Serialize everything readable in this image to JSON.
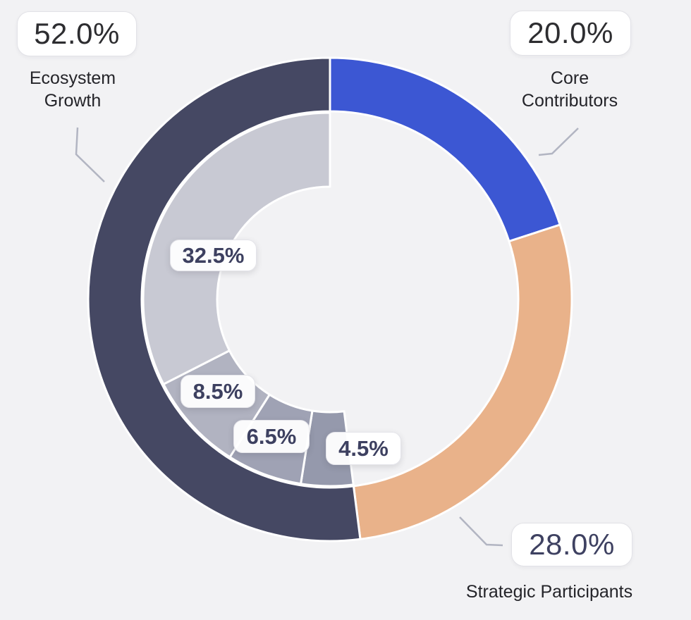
{
  "background_color": "#f2f2f4",
  "segment_stroke_color": "#ffffff",
  "leader_line_color": "#b2b5c2",
  "chart_data": {
    "type": "donut",
    "unit": "%",
    "legend_position": "callouts",
    "rings": [
      {
        "name": "outer",
        "start_angle_deg": 0,
        "segments": [
          {
            "label": "Core Contributors",
            "value": 20.0,
            "color": "#3c57d3"
          },
          {
            "label": "Strategic Participants",
            "value": 28.0,
            "color": "#e9b28a"
          },
          {
            "label": "Ecosystem Growth",
            "value": 52.0,
            "color": "#454863"
          }
        ]
      },
      {
        "name": "inner",
        "start_angle_deg": 172.8,
        "segments": [
          {
            "label": "4.5%",
            "value": 4.5,
            "color": "#9599ac"
          },
          {
            "label": "6.5%",
            "value": 6.5,
            "color": "#9fa2b4"
          },
          {
            "label": "8.5%",
            "value": 8.5,
            "color": "#b1b3c1"
          },
          {
            "label": "32.5%",
            "value": 32.5,
            "color": "#c8c9d3"
          }
        ]
      }
    ]
  },
  "callouts": {
    "ecosystem_growth": {
      "value": "52.0%",
      "label_lines": [
        "Ecosystem",
        "Growth"
      ]
    },
    "core_contributors": {
      "value": "20.0%",
      "label_lines": [
        "Core",
        "Contributors"
      ]
    },
    "strategic_participants": {
      "value": "28.0%",
      "label_lines": [
        "Strategic Participants"
      ]
    }
  }
}
